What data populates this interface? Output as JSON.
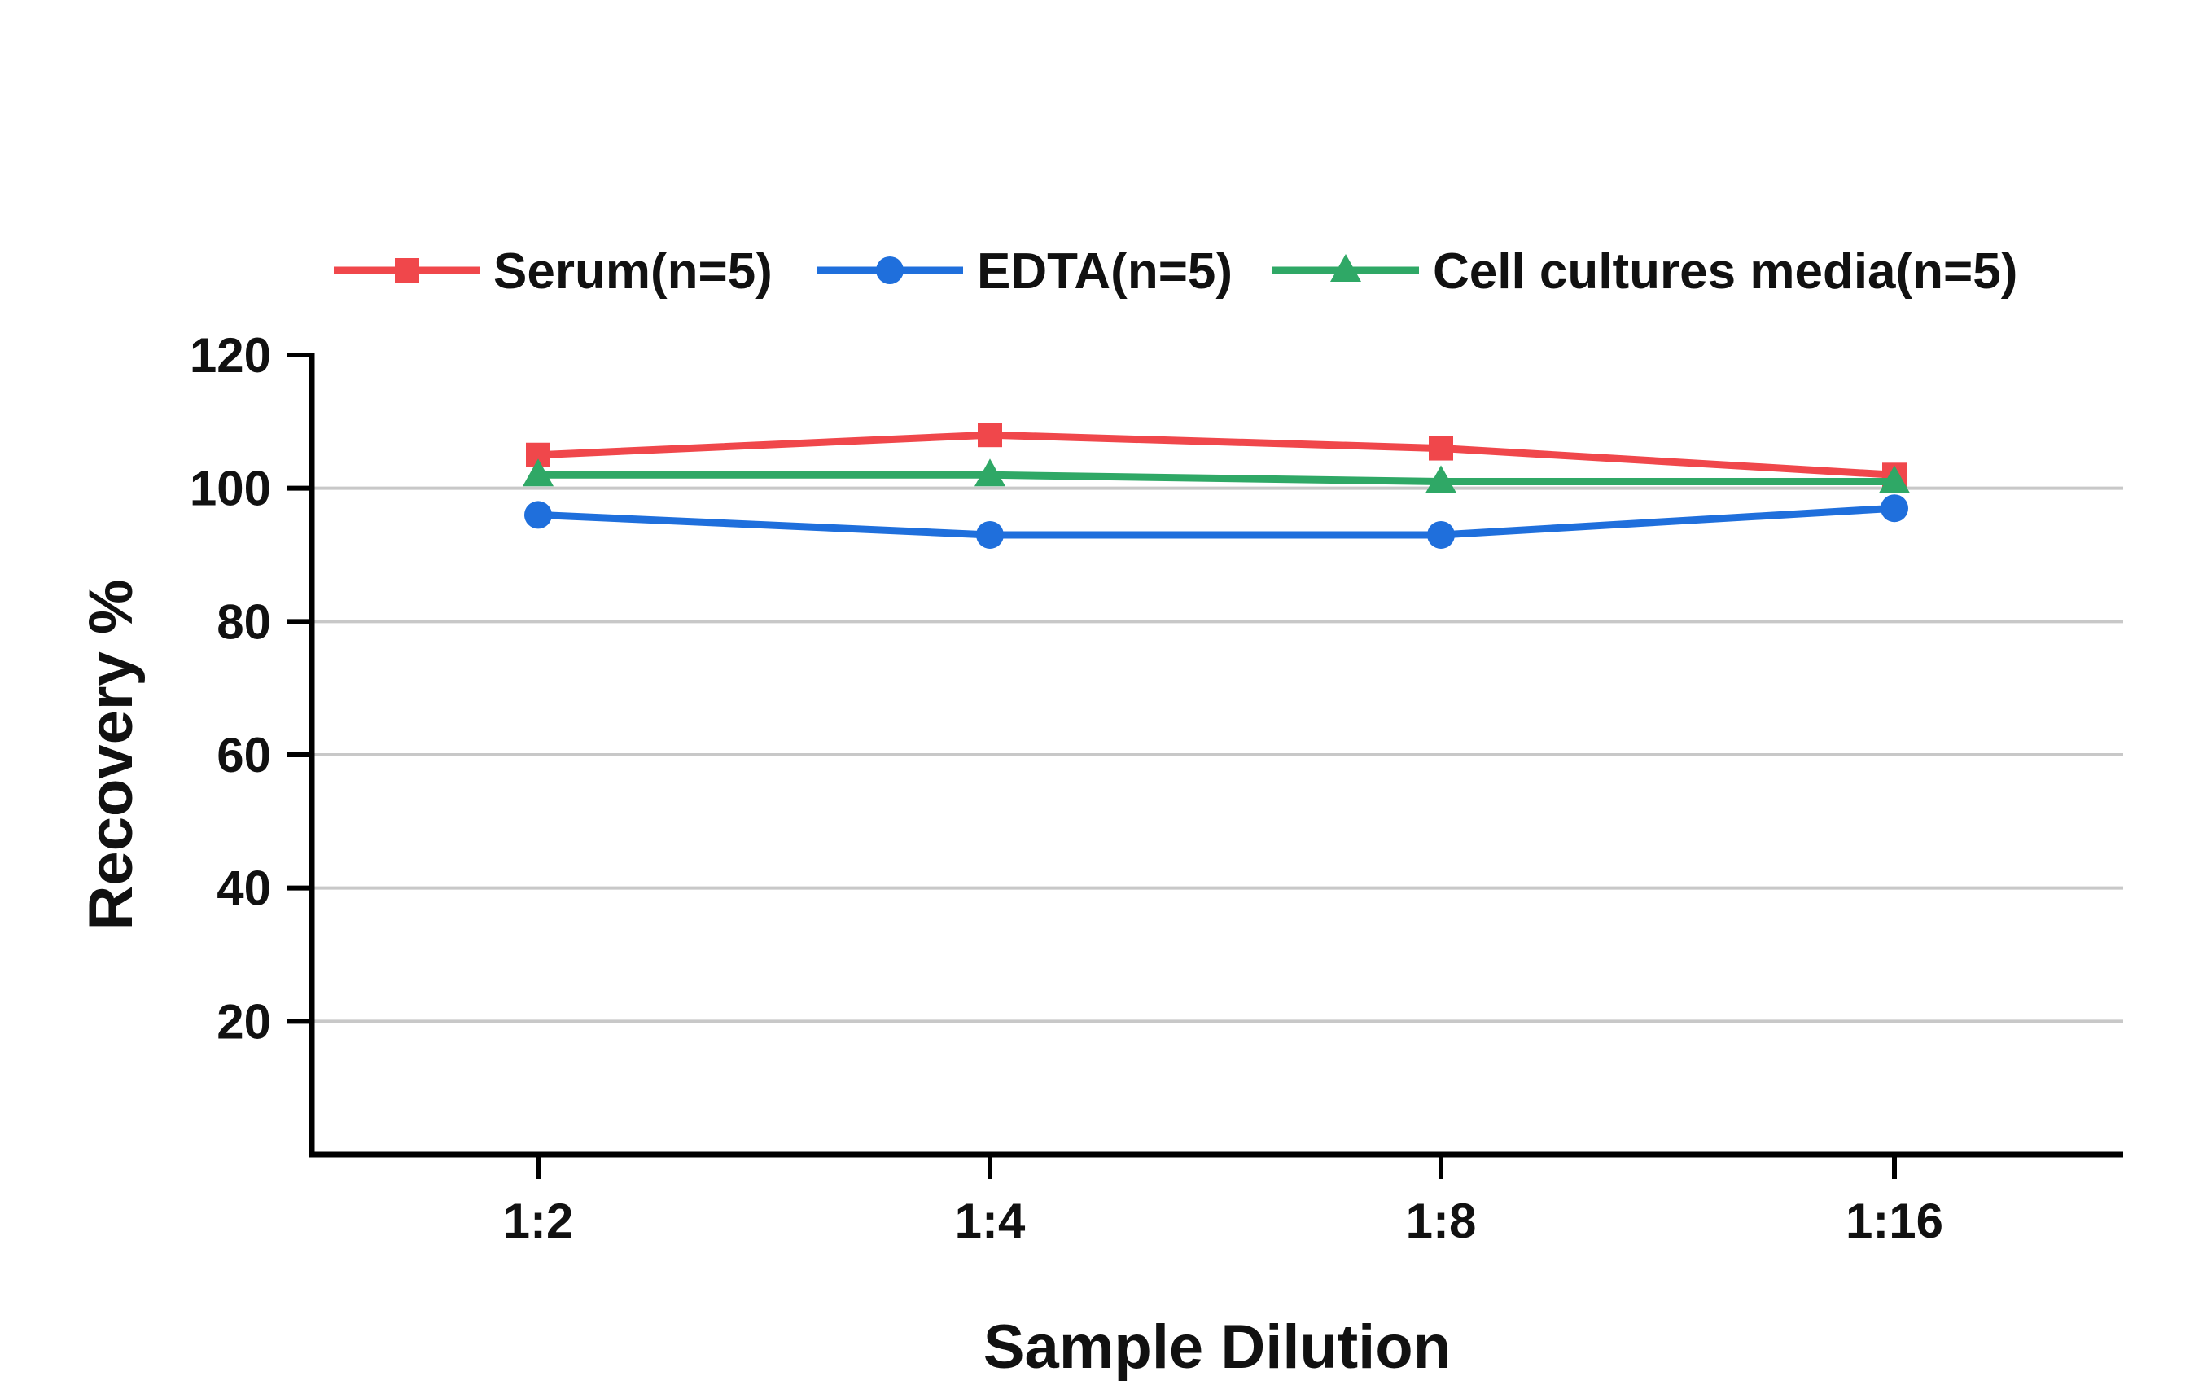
{
  "chart_data": {
    "type": "line",
    "title": "",
    "xlabel": "Sample Dilution",
    "ylabel": "Recovery %",
    "categories": [
      "1:2",
      "1:4",
      "1:8",
      "1:16"
    ],
    "ylim": [
      0,
      120
    ],
    "yticks": [
      20,
      40,
      60,
      80,
      100,
      120
    ],
    "grid": "horizontal",
    "legend_position": "top",
    "series": [
      {
        "name": "Serum(n=5)",
        "color": "#f0474b",
        "marker": "square",
        "values": [
          105,
          108,
          106,
          102
        ]
      },
      {
        "name": "EDTA(n=5)",
        "color": "#1f6fdc",
        "marker": "circle",
        "values": [
          96,
          93,
          93,
          97
        ]
      },
      {
        "name": "Cell cultures media(n=5)",
        "color": "#2fa866",
        "marker": "triangle",
        "values": [
          102,
          102,
          101,
          101
        ]
      }
    ]
  }
}
